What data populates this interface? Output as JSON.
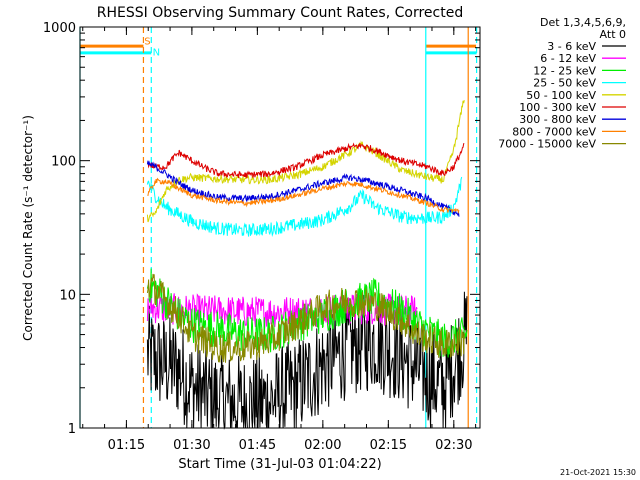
{
  "chart_data": {
    "type": "line",
    "title": "RHESSI Observing Summary Count Rates, Corrected",
    "xlabel": "Start Time (31-Jul-03 01:04:22)",
    "ylabel": "Corrected Count Rate (s⁻¹ detector⁻¹)",
    "y_scale": "log",
    "ylim": [
      1,
      1000
    ],
    "xlim": [
      1.0728,
      2.6
    ],
    "x_unit": "hours UT",
    "x_ticks": [
      {
        "value": 1.25,
        "label": "01:15"
      },
      {
        "value": 1.5,
        "label": "01:30"
      },
      {
        "value": 1.75,
        "label": "01:45"
      },
      {
        "value": 2.0,
        "label": "02:00"
      },
      {
        "value": 2.25,
        "label": "02:15"
      },
      {
        "value": 2.5,
        "label": "02:30"
      }
    ],
    "y_ticks": [
      {
        "value": 1,
        "label": "1"
      },
      {
        "value": 10,
        "label": "10"
      },
      {
        "value": 100,
        "label": "100"
      },
      {
        "value": 1000,
        "label": "1000"
      }
    ],
    "legend_header": [
      "Det 1,3,4,5,6,9,",
      "Att 0"
    ],
    "legend_position": "right",
    "series": [
      {
        "name": "3 - 6 keV",
        "color": "#000000",
        "noise": 0.38,
        "values": [
          [
            1.33,
            3.5
          ],
          [
            1.4,
            3.0
          ],
          [
            1.45,
            2.8
          ],
          [
            1.5,
            2.0
          ],
          [
            1.55,
            1.8
          ],
          [
            1.6,
            1.6
          ],
          [
            1.7,
            1.5
          ],
          [
            1.8,
            1.6
          ],
          [
            1.9,
            2.0
          ],
          [
            2.0,
            3.0
          ],
          [
            2.1,
            4.0
          ],
          [
            2.2,
            4.5
          ],
          [
            2.3,
            3.5
          ],
          [
            2.36,
            2.8
          ],
          [
            2.46,
            2.0
          ],
          [
            2.55,
            5.0
          ]
        ]
      },
      {
        "name": "6 - 12 keV",
        "color": "#ff00ff",
        "noise": 0.12,
        "values": [
          [
            1.33,
            8.0
          ],
          [
            1.4,
            7.8
          ],
          [
            1.5,
            7.6
          ],
          [
            1.6,
            7.5
          ],
          [
            1.7,
            7.4
          ],
          [
            1.8,
            7.4
          ],
          [
            1.9,
            7.5
          ],
          [
            2.0,
            7.6
          ],
          [
            2.1,
            7.8
          ],
          [
            2.2,
            7.8
          ],
          [
            2.3,
            7.6
          ],
          [
            2.36,
            7.4
          ]
        ]
      },
      {
        "name": "12 - 25 keV",
        "color": "#00ee00",
        "noise": 0.14,
        "values": [
          [
            1.33,
            12.0
          ],
          [
            1.36,
            11.0
          ],
          [
            1.4,
            9.0
          ],
          [
            1.45,
            7.0
          ],
          [
            1.5,
            6.0
          ],
          [
            1.6,
            5.5
          ],
          [
            1.7,
            5.0
          ],
          [
            1.8,
            5.0
          ],
          [
            1.9,
            6.0
          ],
          [
            2.0,
            7.0
          ],
          [
            2.1,
            8.5
          ],
          [
            2.2,
            9.5
          ],
          [
            2.3,
            7.5
          ],
          [
            2.36,
            6.0
          ],
          [
            2.46,
            4.5
          ],
          [
            2.55,
            5.0
          ]
        ]
      },
      {
        "name": "25 - 50 keV",
        "color": "#00ffff",
        "noise": 0.05,
        "values": [
          [
            1.33,
            70.0
          ],
          [
            1.36,
            55.0
          ],
          [
            1.4,
            45.0
          ],
          [
            1.5,
            35.0
          ],
          [
            1.6,
            31.0
          ],
          [
            1.7,
            30.0
          ],
          [
            1.8,
            31.0
          ],
          [
            1.9,
            33.0
          ],
          [
            2.0,
            36.0
          ],
          [
            2.1,
            45.0
          ],
          [
            2.15,
            55.0
          ],
          [
            2.2,
            45.0
          ],
          [
            2.3,
            38.0
          ],
          [
            2.4,
            37.0
          ],
          [
            2.46,
            38.0
          ],
          [
            2.5,
            45.0
          ],
          [
            2.53,
            70.0
          ]
        ]
      },
      {
        "name": "50 - 100 keV",
        "color": "#d4d400",
        "noise": 0.03,
        "values": [
          [
            1.33,
            37.0
          ],
          [
            1.36,
            40.0
          ],
          [
            1.4,
            60.0
          ],
          [
            1.45,
            72.0
          ],
          [
            1.5,
            75.0
          ],
          [
            1.6,
            73.0
          ],
          [
            1.7,
            72.0
          ],
          [
            1.8,
            72.0
          ],
          [
            1.9,
            78.0
          ],
          [
            2.0,
            90.0
          ],
          [
            2.1,
            115.0
          ],
          [
            2.15,
            130.0
          ],
          [
            2.2,
            115.0
          ],
          [
            2.3,
            85.0
          ],
          [
            2.4,
            75.0
          ],
          [
            2.46,
            72.0
          ],
          [
            2.5,
            120.0
          ],
          [
            2.54,
            300.0
          ]
        ]
      },
      {
        "name": "100 - 300 keV",
        "color": "#dd0000",
        "noise": 0.025,
        "values": [
          [
            1.33,
            95.0
          ],
          [
            1.36,
            90.0
          ],
          [
            1.4,
            90.0
          ],
          [
            1.43,
            105.0
          ],
          [
            1.45,
            115.0
          ],
          [
            1.5,
            100.0
          ],
          [
            1.55,
            88.0
          ],
          [
            1.6,
            80.0
          ],
          [
            1.7,
            78.0
          ],
          [
            1.8,
            80.0
          ],
          [
            1.9,
            90.0
          ],
          [
            2.0,
            110.0
          ],
          [
            2.1,
            125.0
          ],
          [
            2.15,
            130.0
          ],
          [
            2.2,
            120.0
          ],
          [
            2.3,
            100.0
          ],
          [
            2.4,
            90.0
          ],
          [
            2.46,
            80.0
          ],
          [
            2.5,
            90.0
          ],
          [
            2.54,
            130.0
          ]
        ]
      },
      {
        "name": "300 - 800 keV",
        "color": "#0000dd",
        "noise": 0.025,
        "values": [
          [
            1.33,
            95.0
          ],
          [
            1.36,
            90.0
          ],
          [
            1.4,
            80.0
          ],
          [
            1.45,
            68.0
          ],
          [
            1.5,
            60.0
          ],
          [
            1.6,
            53.0
          ],
          [
            1.7,
            52.0
          ],
          [
            1.8,
            54.0
          ],
          [
            1.9,
            60.0
          ],
          [
            2.0,
            68.0
          ],
          [
            2.1,
            75.0
          ],
          [
            2.15,
            72.0
          ],
          [
            2.2,
            68.0
          ],
          [
            2.3,
            60.0
          ],
          [
            2.4,
            52.0
          ],
          [
            2.46,
            45.0
          ],
          [
            2.52,
            40.0
          ]
        ]
      },
      {
        "name": "800 - 7000 keV",
        "color": "#ff8000",
        "noise": 0.02,
        "values": [
          [
            1.33,
            55.0
          ],
          [
            1.36,
            70.0
          ],
          [
            1.4,
            70.0
          ],
          [
            1.45,
            62.0
          ],
          [
            1.5,
            55.0
          ],
          [
            1.6,
            50.0
          ],
          [
            1.7,
            48.0
          ],
          [
            1.8,
            50.0
          ],
          [
            1.9,
            55.0
          ],
          [
            2.0,
            62.0
          ],
          [
            2.1,
            68.0
          ],
          [
            2.15,
            66.0
          ],
          [
            2.2,
            62.0
          ],
          [
            2.3,
            55.0
          ],
          [
            2.4,
            48.0
          ],
          [
            2.46,
            43.0
          ],
          [
            2.52,
            42.0
          ]
        ]
      },
      {
        "name": "7000 - 15000 keV",
        "color": "#888800",
        "noise": 0.12,
        "values": [
          [
            1.33,
            12.0
          ],
          [
            1.36,
            11.0
          ],
          [
            1.4,
            9.0
          ],
          [
            1.45,
            7.0
          ],
          [
            1.5,
            5.0
          ],
          [
            1.6,
            4.0
          ],
          [
            1.7,
            4.0
          ],
          [
            1.8,
            4.5
          ],
          [
            1.9,
            6.0
          ],
          [
            2.0,
            8.0
          ],
          [
            2.1,
            9.0
          ],
          [
            2.2,
            8.5
          ],
          [
            2.3,
            6.5
          ],
          [
            2.36,
            5.0
          ],
          [
            2.46,
            4.2
          ],
          [
            2.54,
            4.5
          ]
        ]
      }
    ],
    "markers": [
      {
        "name": "start-dashed",
        "x": 1.315,
        "color": "#ff8000",
        "style": "dashed"
      },
      {
        "name": "start-cyan-dashed",
        "x": 1.345,
        "color": "#00ffff",
        "style": "dashed"
      },
      {
        "name": "cyan-solid-left",
        "x": 2.393,
        "color": "#00ffff",
        "style": "solid"
      },
      {
        "name": "orange-solid",
        "x": 2.555,
        "color": "#ff8000",
        "style": "solid"
      },
      {
        "name": "end-cyan-dashed",
        "x": 2.587,
        "color": "#00ffff",
        "style": "dashed"
      },
      {
        "name": "axis-left-cyan",
        "x": 1.0728,
        "color": "#00ffff",
        "style": "solid"
      }
    ],
    "flag_bars": [
      {
        "name": "saa-orange",
        "color": "#ff8000",
        "y": 720,
        "segments": [
          [
            1.073,
            1.315
          ],
          [
            2.393,
            2.585
          ]
        ]
      },
      {
        "name": "night-cyan",
        "color": "#00ffff",
        "y": 640,
        "segments": [
          [
            1.073,
            1.345
          ],
          [
            2.393,
            2.587
          ]
        ]
      }
    ],
    "flag_labels": [
      {
        "text": "S",
        "x": 1.318,
        "y": 740,
        "color": "#ff8000"
      },
      {
        "text": "N",
        "x": 1.35,
        "y": 610,
        "color": "#00ffff"
      }
    ],
    "footer_date": "21-Oct-2021 15:30"
  }
}
